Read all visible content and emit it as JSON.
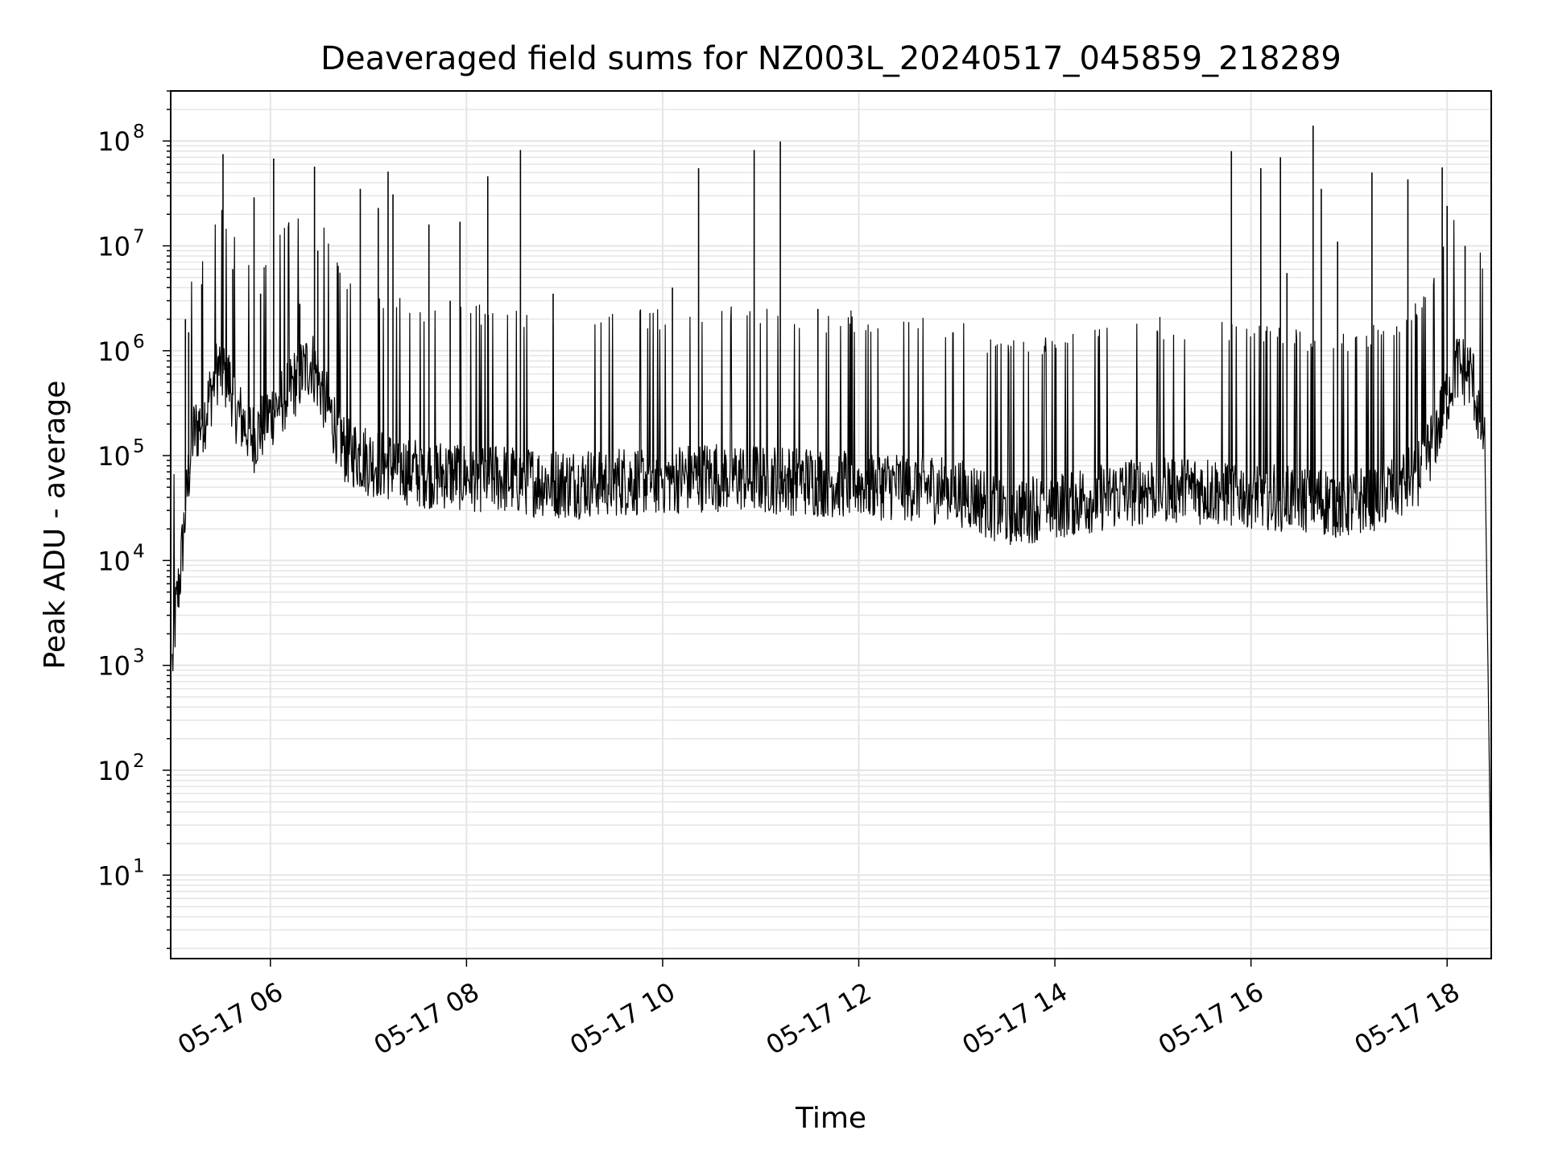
{
  "chart_data": {
    "type": "line",
    "title": "Deaveraged field sums for NZ003L_20240517_045859_218289",
    "xlabel": "Time",
    "ylabel": "Peak ADU - average",
    "y_scale": "log",
    "ylim": [
      1.6,
      300000000
    ],
    "xlim": [
      "2024-05-17T04:59",
      "2024-05-17T18:27"
    ],
    "x_ticks": [
      "2024-05-17T06:00",
      "2024-05-17T08:00",
      "2024-05-17T10:00",
      "2024-05-17T12:00",
      "2024-05-17T14:00",
      "2024-05-17T16:00",
      "2024-05-17T18:00"
    ],
    "x_tick_labels": [
      "05-17 06",
      "05-17 08",
      "05-17 10",
      "05-17 12",
      "05-17 14",
      "05-17 16",
      "05-17 18"
    ],
    "y_tick_labels": [
      {
        "base": "10",
        "exp": "1",
        "value": 10
      },
      {
        "base": "10",
        "exp": "2",
        "value": 100
      },
      {
        "base": "10",
        "exp": "3",
        "value": 1000
      },
      {
        "base": "10",
        "exp": "4",
        "value": 10000
      },
      {
        "base": "10",
        "exp": "5",
        "value": 100000
      },
      {
        "base": "10",
        "exp": "6",
        "value": 1000000
      },
      {
        "base": "10",
        "exp": "7",
        "value": 10000000
      },
      {
        "base": "10",
        "exp": "8",
        "value": 100000000
      }
    ],
    "grid": true,
    "legend": false,
    "line_color": "#000000",
    "grid_color": "#e5e5e5",
    "series": [
      {
        "x": [
          "2024-05-17T05:00",
          "2024-05-17T05:02",
          "2024-05-17T05:05",
          "2024-05-17T05:08",
          "2024-05-17T05:12",
          "2024-05-17T05:20",
          "2024-05-17T05:28",
          "2024-05-17T05:35",
          "2024-05-17T05:40",
          "2024-05-17T05:50",
          "2024-05-17T06:00",
          "2024-05-17T06:15",
          "2024-05-17T06:25",
          "2024-05-17T06:35",
          "2024-05-17T06:45",
          "2024-05-17T07:00",
          "2024-05-17T07:15",
          "2024-05-17T07:30",
          "2024-05-17T08:00",
          "2024-05-17T08:30",
          "2024-05-17T09:00",
          "2024-05-17T09:30",
          "2024-05-17T10:00",
          "2024-05-17T10:30",
          "2024-05-17T11:00",
          "2024-05-17T11:30",
          "2024-05-17T12:00",
          "2024-05-17T12:30",
          "2024-05-17T13:00",
          "2024-05-17T13:30",
          "2024-05-17T14:00",
          "2024-05-17T14:30",
          "2024-05-17T15:00",
          "2024-05-17T15:30",
          "2024-05-17T16:00",
          "2024-05-17T16:30",
          "2024-05-17T17:00",
          "2024-05-17T17:30",
          "2024-05-17T17:45",
          "2024-05-17T17:55",
          "2024-05-17T18:05",
          "2024-05-17T18:15",
          "2024-05-17T18:20",
          "2024-05-17T18:23",
          "2024-05-17T18:25",
          "2024-05-17T18:27"
        ],
        "y": [
          1000,
          3000,
          8000,
          30000,
          150000,
          250000,
          700000,
          500000,
          250000,
          150000,
          250000,
          500000,
          800000,
          300000,
          120000,
          90000,
          80000,
          70000,
          65000,
          60000,
          55000,
          58000,
          60000,
          65000,
          62000,
          58000,
          55000,
          52000,
          48000,
          30000,
          35000,
          42000,
          50000,
          48000,
          45000,
          40000,
          35000,
          50000,
          80000,
          200000,
          700000,
          600000,
          220000,
          150000,
          1000,
          4
        ]
      }
    ],
    "spikes": [
      {
        "x": "2024-05-17T05:08",
        "y": 2000000
      },
      {
        "x": "2024-05-17T05:10",
        "y": 1500000
      },
      {
        "x": "2024-05-17T05:18",
        "y": 4300000
      },
      {
        "x": "2024-05-17T05:31",
        "y": 75000000
      },
      {
        "x": "2024-05-17T05:37",
        "y": 6000000
      },
      {
        "x": "2024-05-17T05:50",
        "y": 29000000
      },
      {
        "x": "2024-05-17T05:54",
        "y": 3500000
      },
      {
        "x": "2024-05-17T06:02",
        "y": 68000000
      },
      {
        "x": "2024-05-17T06:18",
        "y": 2800000
      },
      {
        "x": "2024-05-17T06:27",
        "y": 57000000
      },
      {
        "x": "2024-05-17T06:29",
        "y": 9000000
      },
      {
        "x": "2024-05-17T06:55",
        "y": 35000000
      },
      {
        "x": "2024-05-17T07:06",
        "y": 23000000
      },
      {
        "x": "2024-05-17T07:12",
        "y": 51000000
      },
      {
        "x": "2024-05-17T07:15",
        "y": 31000000
      },
      {
        "x": "2024-05-17T07:37",
        "y": 16000000
      },
      {
        "x": "2024-05-17T07:50",
        "y": 3000000
      },
      {
        "x": "2024-05-17T07:56",
        "y": 17000000
      },
      {
        "x": "2024-05-17T08:13",
        "y": 46000000
      },
      {
        "x": "2024-05-17T08:33",
        "y": 82000000
      },
      {
        "x": "2024-05-17T08:53",
        "y": 3500000
      },
      {
        "x": "2024-05-17T10:06",
        "y": 4000000
      },
      {
        "x": "2024-05-17T10:22",
        "y": 55000000
      },
      {
        "x": "2024-05-17T10:56",
        "y": 82000000
      },
      {
        "x": "2024-05-17T11:12",
        "y": 99000000
      },
      {
        "x": "2024-05-17T11:35",
        "y": 2500000
      },
      {
        "x": "2024-05-17T15:48",
        "y": 80000000
      },
      {
        "x": "2024-05-17T16:06",
        "y": 55000000
      },
      {
        "x": "2024-05-17T16:18",
        "y": 70000000
      },
      {
        "x": "2024-05-17T16:22",
        "y": 5500000
      },
      {
        "x": "2024-05-17T16:38",
        "y": 140000000
      },
      {
        "x": "2024-05-17T16:43",
        "y": 35000000
      },
      {
        "x": "2024-05-17T16:53",
        "y": 11000000
      },
      {
        "x": "2024-05-17T17:14",
        "y": 50000000
      },
      {
        "x": "2024-05-17T17:36",
        "y": 43000000
      },
      {
        "x": "2024-05-17T17:57",
        "y": 56000000
      },
      {
        "x": "2024-05-17T18:00",
        "y": 24000000
      },
      {
        "x": "2024-05-17T18:11",
        "y": 10000000
      }
    ]
  }
}
